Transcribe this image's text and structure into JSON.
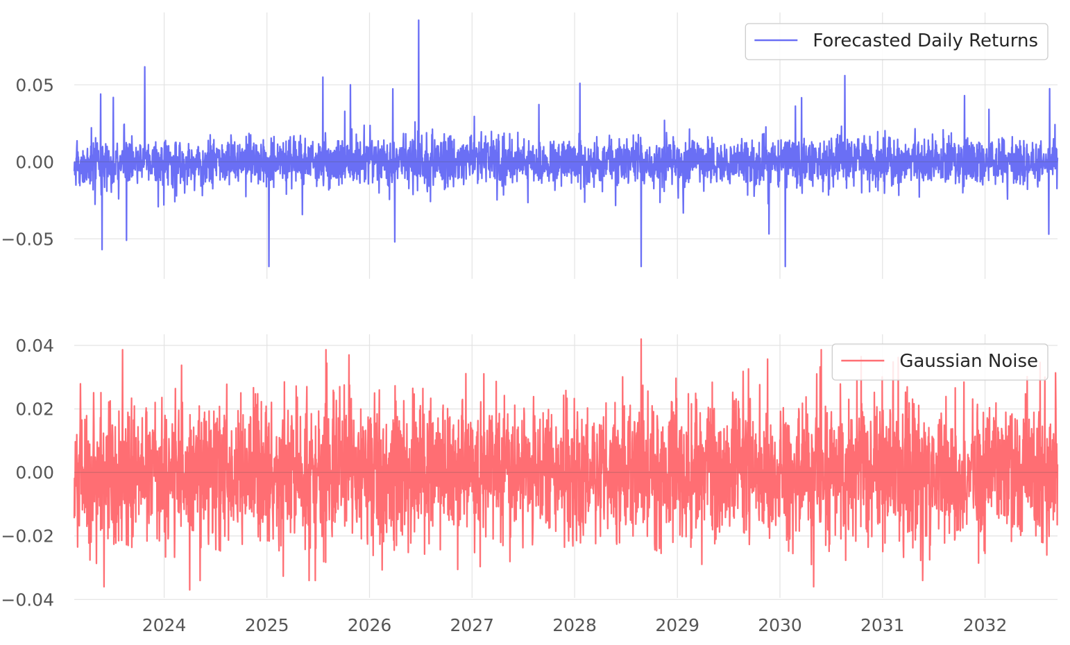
{
  "chart_data": [
    {
      "type": "line",
      "series": [
        {
          "name": "Forecasted Daily Returns",
          "color": "#6a6ff5",
          "x_start": "2023-02-15",
          "x_end": "2032-09-15",
          "y_range_shown": [
            -0.069,
            0.092
          ],
          "notable_values": [
            {
              "x": "2023-05-20",
              "y": 0.044
            },
            {
              "x": "2023-05-25",
              "y": -0.057
            },
            {
              "x": "2023-08-20",
              "y": -0.051
            },
            {
              "x": "2025-01-08",
              "y": -0.068
            },
            {
              "x": "2025-10-25",
              "y": 0.05
            },
            {
              "x": "2026-06-25",
              "y": 0.092
            },
            {
              "x": "2026-04-01",
              "y": -0.052
            },
            {
              "x": "2028-01-20",
              "y": 0.051
            },
            {
              "x": "2028-08-25",
              "y": -0.068
            },
            {
              "x": "2030-01-20",
              "y": -0.068
            },
            {
              "x": "2030-08-20",
              "y": 0.056
            },
            {
              "x": "2031-10-20",
              "y": 0.043
            },
            {
              "x": "2032-08-15",
              "y": -0.047
            }
          ]
        }
      ],
      "legend": "top-right",
      "ylim": [
        -0.076,
        0.097
      ],
      "yticks": [
        "0.05",
        "0.00",
        "−0.05"
      ],
      "ytick_values": [
        0.05,
        0.0,
        -0.05
      ],
      "xlim": [
        "2023-02-15",
        "2032-09-15"
      ],
      "grid": true
    },
    {
      "type": "line",
      "series": [
        {
          "name": "Gaussian Noise",
          "color": "#ff6e73",
          "x_start": "2023-02-15",
          "x_end": "2032-09-15",
          "y_range_shown": [
            -0.037,
            0.042
          ],
          "notable_values": [
            {
              "x": "2023-06-01",
              "y": -0.036
            },
            {
              "x": "2024-04-01",
              "y": -0.037
            },
            {
              "x": "2025-10-20",
              "y": 0.037
            },
            {
              "x": "2028-08-25",
              "y": 0.042
            },
            {
              "x": "2030-05-01",
              "y": -0.036
            },
            {
              "x": "2032-08-01",
              "y": 0.03
            }
          ]
        }
      ],
      "legend": "top-right",
      "ylim": [
        -0.0395,
        0.0435
      ],
      "yticks": [
        "0.04",
        "0.02",
        "0.00",
        "−0.02",
        "−0.04"
      ],
      "ytick_values": [
        0.04,
        0.02,
        0.0,
        -0.02,
        -0.04
      ],
      "xticks": [
        "2024",
        "2025",
        "2026",
        "2027",
        "2028",
        "2029",
        "2030",
        "2031",
        "2032"
      ],
      "xtick_values": [
        "2024-01-01",
        "2025-01-01",
        "2026-01-01",
        "2027-01-01",
        "2028-01-01",
        "2029-01-01",
        "2030-01-01",
        "2031-01-01",
        "2032-01-01"
      ],
      "xlim": [
        "2023-02-15",
        "2032-09-15"
      ],
      "grid": true
    }
  ]
}
